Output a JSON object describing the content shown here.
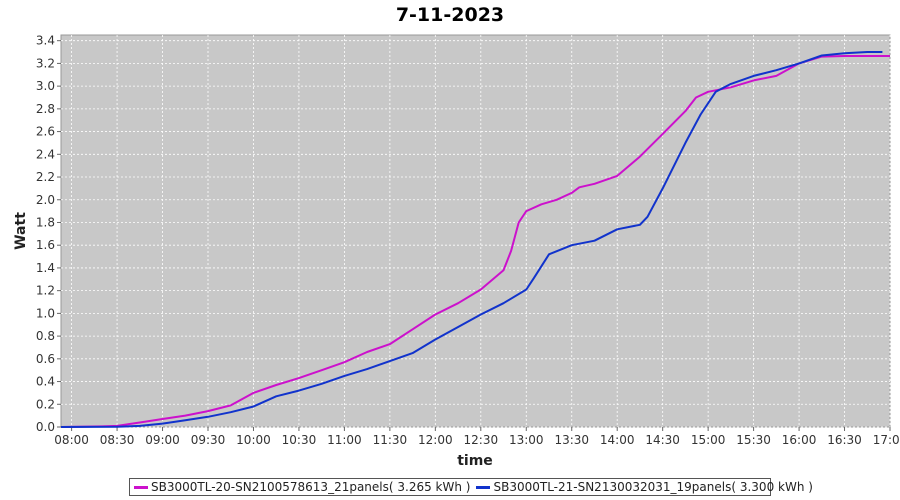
{
  "chart_data": {
    "type": "line",
    "title": "7-11-2023",
    "xlabel": "time",
    "ylabel": "Watt",
    "xlim": [
      "07:53",
      "17:00"
    ],
    "ylim": [
      0,
      3.45
    ],
    "x_ticks": [
      "08:00",
      "08:30",
      "09:00",
      "09:30",
      "10:00",
      "10:30",
      "11:00",
      "11:30",
      "12:00",
      "12:30",
      "13:00",
      "13:30",
      "14:00",
      "14:30",
      "15:00",
      "15:30",
      "16:00",
      "16:30",
      "17:00"
    ],
    "y_ticks": [
      "0.0",
      "0.2",
      "0.4",
      "0.6",
      "0.8",
      "1.0",
      "1.2",
      "1.4",
      "1.6",
      "1.8",
      "2.0",
      "2.2",
      "2.4",
      "2.6",
      "2.8",
      "3.0",
      "3.2",
      "3.4"
    ],
    "grid": true,
    "legend_position": "bottom",
    "series": [
      {
        "name": "SB3000TL-20-SN2100578613_21panels( 3.265 kWh )",
        "color": "#cc11cc",
        "points": [
          [
            "07:53",
            0.0
          ],
          [
            "08:20",
            0.005
          ],
          [
            "08:30",
            0.01
          ],
          [
            "08:45",
            0.04
          ],
          [
            "09:00",
            0.07
          ],
          [
            "09:15",
            0.1
          ],
          [
            "09:30",
            0.14
          ],
          [
            "09:45",
            0.19
          ],
          [
            "10:00",
            0.3
          ],
          [
            "10:15",
            0.37
          ],
          [
            "10:30",
            0.43
          ],
          [
            "10:45",
            0.5
          ],
          [
            "11:00",
            0.57
          ],
          [
            "11:15",
            0.66
          ],
          [
            "11:30",
            0.73
          ],
          [
            "11:45",
            0.86
          ],
          [
            "12:00",
            0.99
          ],
          [
            "12:15",
            1.09
          ],
          [
            "12:30",
            1.21
          ],
          [
            "12:45",
            1.38
          ],
          [
            "12:50",
            1.55
          ],
          [
            "12:55",
            1.8
          ],
          [
            "13:00",
            1.9
          ],
          [
            "13:10",
            1.96
          ],
          [
            "13:20",
            2.0
          ],
          [
            "13:30",
            2.06
          ],
          [
            "13:35",
            2.11
          ],
          [
            "13:45",
            2.14
          ],
          [
            "14:00",
            2.21
          ],
          [
            "14:15",
            2.38
          ],
          [
            "14:30",
            2.58
          ],
          [
            "14:45",
            2.78
          ],
          [
            "14:52",
            2.9
          ],
          [
            "15:00",
            2.95
          ],
          [
            "15:15",
            2.99
          ],
          [
            "15:30",
            3.05
          ],
          [
            "15:45",
            3.09
          ],
          [
            "16:00",
            3.2
          ],
          [
            "16:15",
            3.26
          ],
          [
            "16:30",
            3.265
          ],
          [
            "16:45",
            3.265
          ],
          [
            "17:00",
            3.265
          ]
        ]
      },
      {
        "name": "SB3000TL-21-SN2130032031_19panels( 3.300 kWh )",
        "color": "#1133cc",
        "points": [
          [
            "07:53",
            0.0
          ],
          [
            "08:30",
            0.003
          ],
          [
            "08:45",
            0.01
          ],
          [
            "09:00",
            0.03
          ],
          [
            "09:15",
            0.06
          ],
          [
            "09:30",
            0.09
          ],
          [
            "09:45",
            0.13
          ],
          [
            "10:00",
            0.18
          ],
          [
            "10:15",
            0.27
          ],
          [
            "10:30",
            0.32
          ],
          [
            "10:45",
            0.38
          ],
          [
            "11:00",
            0.45
          ],
          [
            "11:15",
            0.51
          ],
          [
            "11:30",
            0.58
          ],
          [
            "11:45",
            0.65
          ],
          [
            "12:00",
            0.77
          ],
          [
            "12:15",
            0.88
          ],
          [
            "12:30",
            0.99
          ],
          [
            "12:45",
            1.09
          ],
          [
            "13:00",
            1.21
          ],
          [
            "13:05",
            1.31
          ],
          [
            "13:15",
            1.52
          ],
          [
            "13:30",
            1.6
          ],
          [
            "13:45",
            1.64
          ],
          [
            "14:00",
            1.74
          ],
          [
            "14:15",
            1.78
          ],
          [
            "14:20",
            1.85
          ],
          [
            "14:30",
            2.1
          ],
          [
            "14:45",
            2.5
          ],
          [
            "14:55",
            2.75
          ],
          [
            "15:05",
            2.95
          ],
          [
            "15:15",
            3.02
          ],
          [
            "15:30",
            3.09
          ],
          [
            "15:45",
            3.14
          ],
          [
            "16:00",
            3.2
          ],
          [
            "16:15",
            3.27
          ],
          [
            "16:30",
            3.29
          ],
          [
            "16:45",
            3.3
          ],
          [
            "16:55",
            3.3
          ]
        ]
      }
    ]
  }
}
